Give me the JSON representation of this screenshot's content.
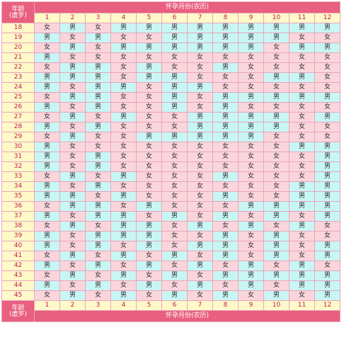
{
  "header": {
    "age_label": [
      "年龄",
      "(虚岁)"
    ],
    "month_band": "怀孕月份(农历)",
    "months": [
      "1",
      "2",
      "3",
      "4",
      "5",
      "6",
      "7",
      "8",
      "9",
      "10",
      "11",
      "12"
    ]
  },
  "colors": {
    "band": "#e95f7f",
    "label_bg": "#fff8c8",
    "label_text": "#c11f4f",
    "male_bg": "#c8f6f4",
    "female_bg": "#fbd5dc",
    "border": "#e6a7bb"
  },
  "rows": [
    {
      "age": "18",
      "values": [
        "女",
        "男",
        "女",
        "男",
        "男",
        "男",
        "男",
        "男",
        "男",
        "男",
        "男",
        "男"
      ]
    },
    {
      "age": "19",
      "values": [
        "男",
        "女",
        "男",
        "女",
        "女",
        "男",
        "男",
        "男",
        "男",
        "男",
        "女",
        "女"
      ]
    },
    {
      "age": "20",
      "values": [
        "女",
        "男",
        "女",
        "男",
        "男",
        "男",
        "男",
        "男",
        "男",
        "女",
        "男",
        "男"
      ]
    },
    {
      "age": "21",
      "values": [
        "男",
        "女",
        "女",
        "女",
        "女",
        "女",
        "女",
        "女",
        "女",
        "女",
        "女",
        "女"
      ]
    },
    {
      "age": "22",
      "values": [
        "女",
        "男",
        "男",
        "女",
        "男",
        "女",
        "女",
        "男",
        "女",
        "女",
        "女",
        "女"
      ]
    },
    {
      "age": "23",
      "values": [
        "男",
        "男",
        "男",
        "女",
        "男",
        "男",
        "女",
        "女",
        "女",
        "男",
        "男",
        "女"
      ]
    },
    {
      "age": "24",
      "values": [
        "男",
        "女",
        "男",
        "男",
        "女",
        "男",
        "男",
        "女",
        "女",
        "女",
        "女",
        "女"
      ]
    },
    {
      "age": "25",
      "values": [
        "女",
        "男",
        "男",
        "女",
        "女",
        "男",
        "女",
        "男",
        "男",
        "男",
        "男",
        "男"
      ]
    },
    {
      "age": "26",
      "values": [
        "男",
        "女",
        "男",
        "女",
        "女",
        "男",
        "女",
        "男",
        "女",
        "女",
        "女",
        "女"
      ]
    },
    {
      "age": "27",
      "values": [
        "女",
        "男",
        "女",
        "男",
        "女",
        "女",
        "男",
        "男",
        "男",
        "男",
        "女",
        "男"
      ]
    },
    {
      "age": "28",
      "values": [
        "男",
        "女",
        "男",
        "女",
        "女",
        "女",
        "男",
        "男",
        "男",
        "男",
        "女",
        "女"
      ]
    },
    {
      "age": "29",
      "values": [
        "女",
        "男",
        "女",
        "女",
        "男",
        "男",
        "男",
        "男",
        "男",
        "女",
        "女",
        "女"
      ]
    },
    {
      "age": "30",
      "values": [
        "男",
        "女",
        "女",
        "女",
        "女",
        "女",
        "女",
        "女",
        "女",
        "女",
        "男",
        "男"
      ]
    },
    {
      "age": "31",
      "values": [
        "男",
        "女",
        "男",
        "女",
        "女",
        "女",
        "女",
        "女",
        "女",
        "女",
        "女",
        "男"
      ]
    },
    {
      "age": "32",
      "values": [
        "男",
        "女",
        "男",
        "女",
        "女",
        "女",
        "女",
        "女",
        "女",
        "女",
        "女",
        "男"
      ]
    },
    {
      "age": "33",
      "values": [
        "女",
        "男",
        "女",
        "男",
        "女",
        "女",
        "女",
        "男",
        "女",
        "女",
        "女",
        "男"
      ]
    },
    {
      "age": "34",
      "values": [
        "男",
        "女",
        "男",
        "女",
        "女",
        "女",
        "女",
        "女",
        "女",
        "女",
        "男",
        "男"
      ]
    },
    {
      "age": "35",
      "values": [
        "男",
        "男",
        "女",
        "男",
        "女",
        "女",
        "女",
        "男",
        "女",
        "女",
        "男",
        "男"
      ]
    },
    {
      "age": "36",
      "values": [
        "女",
        "男",
        "男",
        "女",
        "男",
        "女",
        "女",
        "女",
        "男",
        "男",
        "男",
        "男"
      ]
    },
    {
      "age": "37",
      "values": [
        "男",
        "女",
        "男",
        "男",
        "女",
        "男",
        "女",
        "男",
        "女",
        "男",
        "女",
        "男"
      ]
    },
    {
      "age": "38",
      "values": [
        "女",
        "男",
        "女",
        "男",
        "男",
        "女",
        "男",
        "女",
        "男",
        "女",
        "男",
        "女"
      ]
    },
    {
      "age": "39",
      "values": [
        "男",
        "女",
        "男",
        "男",
        "男",
        "女",
        "女",
        "男",
        "女",
        "男",
        "女",
        "女"
      ]
    },
    {
      "age": "40",
      "values": [
        "男",
        "女",
        "男",
        "女",
        "男",
        "女",
        "男",
        "男",
        "女",
        "男",
        "女",
        "男"
      ]
    },
    {
      "age": "41",
      "values": [
        "女",
        "男",
        "女",
        "男",
        "女",
        "男",
        "女",
        "男",
        "女",
        "男",
        "女",
        "男"
      ]
    },
    {
      "age": "42",
      "values": [
        "男",
        "女",
        "男",
        "女",
        "男",
        "女",
        "男",
        "女",
        "男",
        "女",
        "男",
        "女"
      ]
    },
    {
      "age": "43",
      "values": [
        "女",
        "男",
        "女",
        "男",
        "女",
        "男",
        "女",
        "男",
        "男",
        "男",
        "男",
        "男"
      ]
    },
    {
      "age": "44",
      "values": [
        "男",
        "女",
        "男",
        "女",
        "男",
        "女",
        "男",
        "女",
        "男",
        "女",
        "男",
        "男"
      ]
    },
    {
      "age": "45",
      "values": [
        "女",
        "男",
        "女",
        "男",
        "女",
        "男",
        "女",
        "男",
        "女",
        "男",
        "女",
        "男"
      ]
    }
  ]
}
